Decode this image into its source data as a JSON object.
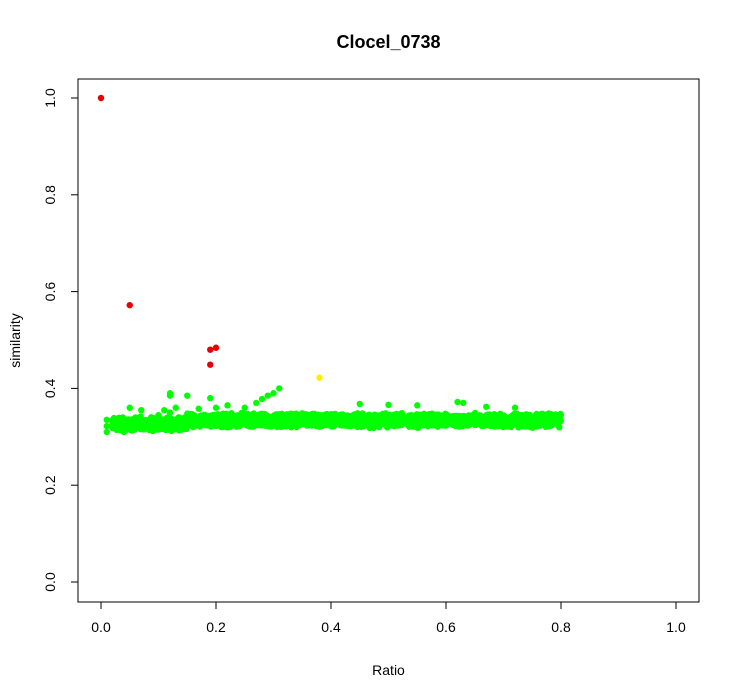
{
  "chart_data": {
    "type": "scatter",
    "title": "Clocel_0738",
    "xlabel": "Ratio",
    "ylabel": "similarity",
    "xlim": [
      0,
      1
    ],
    "ylim": [
      0,
      1
    ],
    "xticks": [
      "0.0",
      "0.2",
      "0.4",
      "0.6",
      "0.8",
      "1.0"
    ],
    "yticks": [
      "0.0",
      "0.2",
      "0.4",
      "0.6",
      "0.8",
      "1.0"
    ],
    "grid": false,
    "legend": "none",
    "colors": {
      "high": "#e80000",
      "mid": "#ffee00",
      "bulk": "#00ff00"
    },
    "series": [
      {
        "color_key": "high",
        "points": [
          [
            0.0,
            1.0
          ],
          [
            0.05,
            0.572
          ],
          [
            0.19,
            0.48
          ],
          [
            0.2,
            0.484
          ],
          [
            0.19,
            0.449
          ]
        ]
      },
      {
        "color_key": "mid",
        "points": [
          [
            0.38,
            0.422
          ]
        ]
      },
      {
        "color_key": "bulk",
        "points": [
          [
            0.01,
            0.335
          ],
          [
            0.01,
            0.31
          ],
          [
            0.01,
            0.322
          ],
          [
            0.02,
            0.328
          ],
          [
            0.03,
            0.33
          ],
          [
            0.04,
            0.31
          ],
          [
            0.05,
            0.36
          ],
          [
            0.05,
            0.315
          ],
          [
            0.06,
            0.34
          ],
          [
            0.07,
            0.355
          ],
          [
            0.08,
            0.32
          ],
          [
            0.09,
            0.312
          ],
          [
            0.1,
            0.345
          ],
          [
            0.11,
            0.355
          ],
          [
            0.12,
            0.385
          ],
          [
            0.12,
            0.39
          ],
          [
            0.12,
            0.35
          ],
          [
            0.15,
            0.385
          ],
          [
            0.13,
            0.36
          ],
          [
            0.14,
            0.315
          ],
          [
            0.16,
            0.32
          ],
          [
            0.17,
            0.358
          ],
          [
            0.19,
            0.38
          ],
          [
            0.2,
            0.36
          ],
          [
            0.22,
            0.365
          ],
          [
            0.25,
            0.36
          ],
          [
            0.27,
            0.37
          ],
          [
            0.28,
            0.378
          ],
          [
            0.29,
            0.385
          ],
          [
            0.3,
            0.39
          ],
          [
            0.31,
            0.4
          ],
          [
            0.45,
            0.368
          ],
          [
            0.5,
            0.366
          ],
          [
            0.55,
            0.365
          ],
          [
            0.62,
            0.372
          ],
          [
            0.63,
            0.37
          ],
          [
            0.67,
            0.362
          ],
          [
            0.72,
            0.36
          ]
        ],
        "band": {
          "x_range": [
            0.02,
            0.8
          ],
          "y_low": 0.318,
          "y_high": 0.35,
          "count": 2600
        }
      }
    ]
  }
}
